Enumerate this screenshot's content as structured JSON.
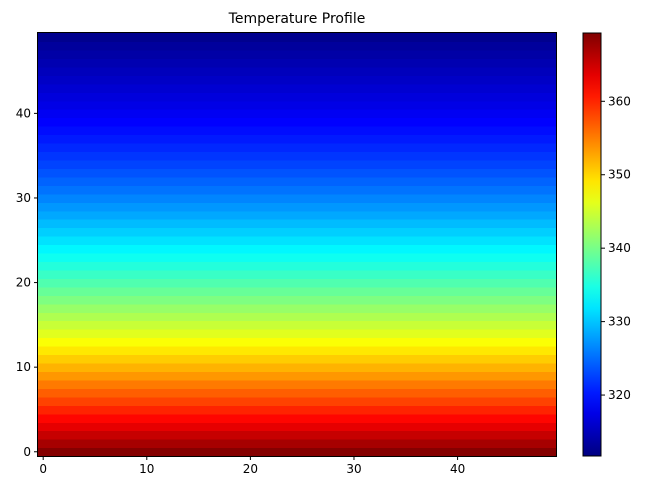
{
  "chart_data": {
    "type": "heatmap",
    "title": "Temperature Profile",
    "xlabel": "",
    "ylabel": "",
    "colormap": "jet",
    "grid": false,
    "x": {
      "range": [
        -0.5,
        49.5
      ],
      "ticks": [
        0,
        10,
        20,
        30,
        40
      ],
      "tick_labels": [
        "0",
        "10",
        "20",
        "30",
        "40"
      ]
    },
    "y": {
      "range": [
        -0.5,
        49.5
      ],
      "origin": "lower",
      "ticks": [
        0,
        10,
        20,
        30,
        40
      ],
      "tick_labels": [
        "0",
        "10",
        "20",
        "30",
        "40"
      ]
    },
    "grid_size": {
      "rows": 50,
      "cols": 50
    },
    "row_values_description_note": "",
    "row_values": [
      369,
      367.1,
      365.3,
      363.5,
      361.8,
      360.1,
      358.4,
      356.8,
      355.2,
      353.6,
      352,
      350.5,
      349,
      347.5,
      346,
      344.6,
      343.2,
      341.8,
      340.4,
      339.1,
      337.8,
      336.5,
      335.3,
      334.1,
      332.9,
      331.7,
      330.6,
      329.5,
      328.4,
      327.4,
      326.4,
      325.4,
      324.5,
      323.6,
      322.7,
      321.9,
      321.1,
      320.3,
      319.6,
      318.9,
      318.2,
      317.5,
      316.9,
      316.3,
      315.7,
      315.1,
      314.5,
      313.9,
      313.3,
      312.5
    ],
    "colorbar": {
      "range": [
        311.7,
        369.3
      ],
      "ticks": [
        320,
        330,
        340,
        350,
        360
      ],
      "tick_labels": [
        "320",
        "330",
        "340",
        "350",
        "360"
      ]
    }
  }
}
